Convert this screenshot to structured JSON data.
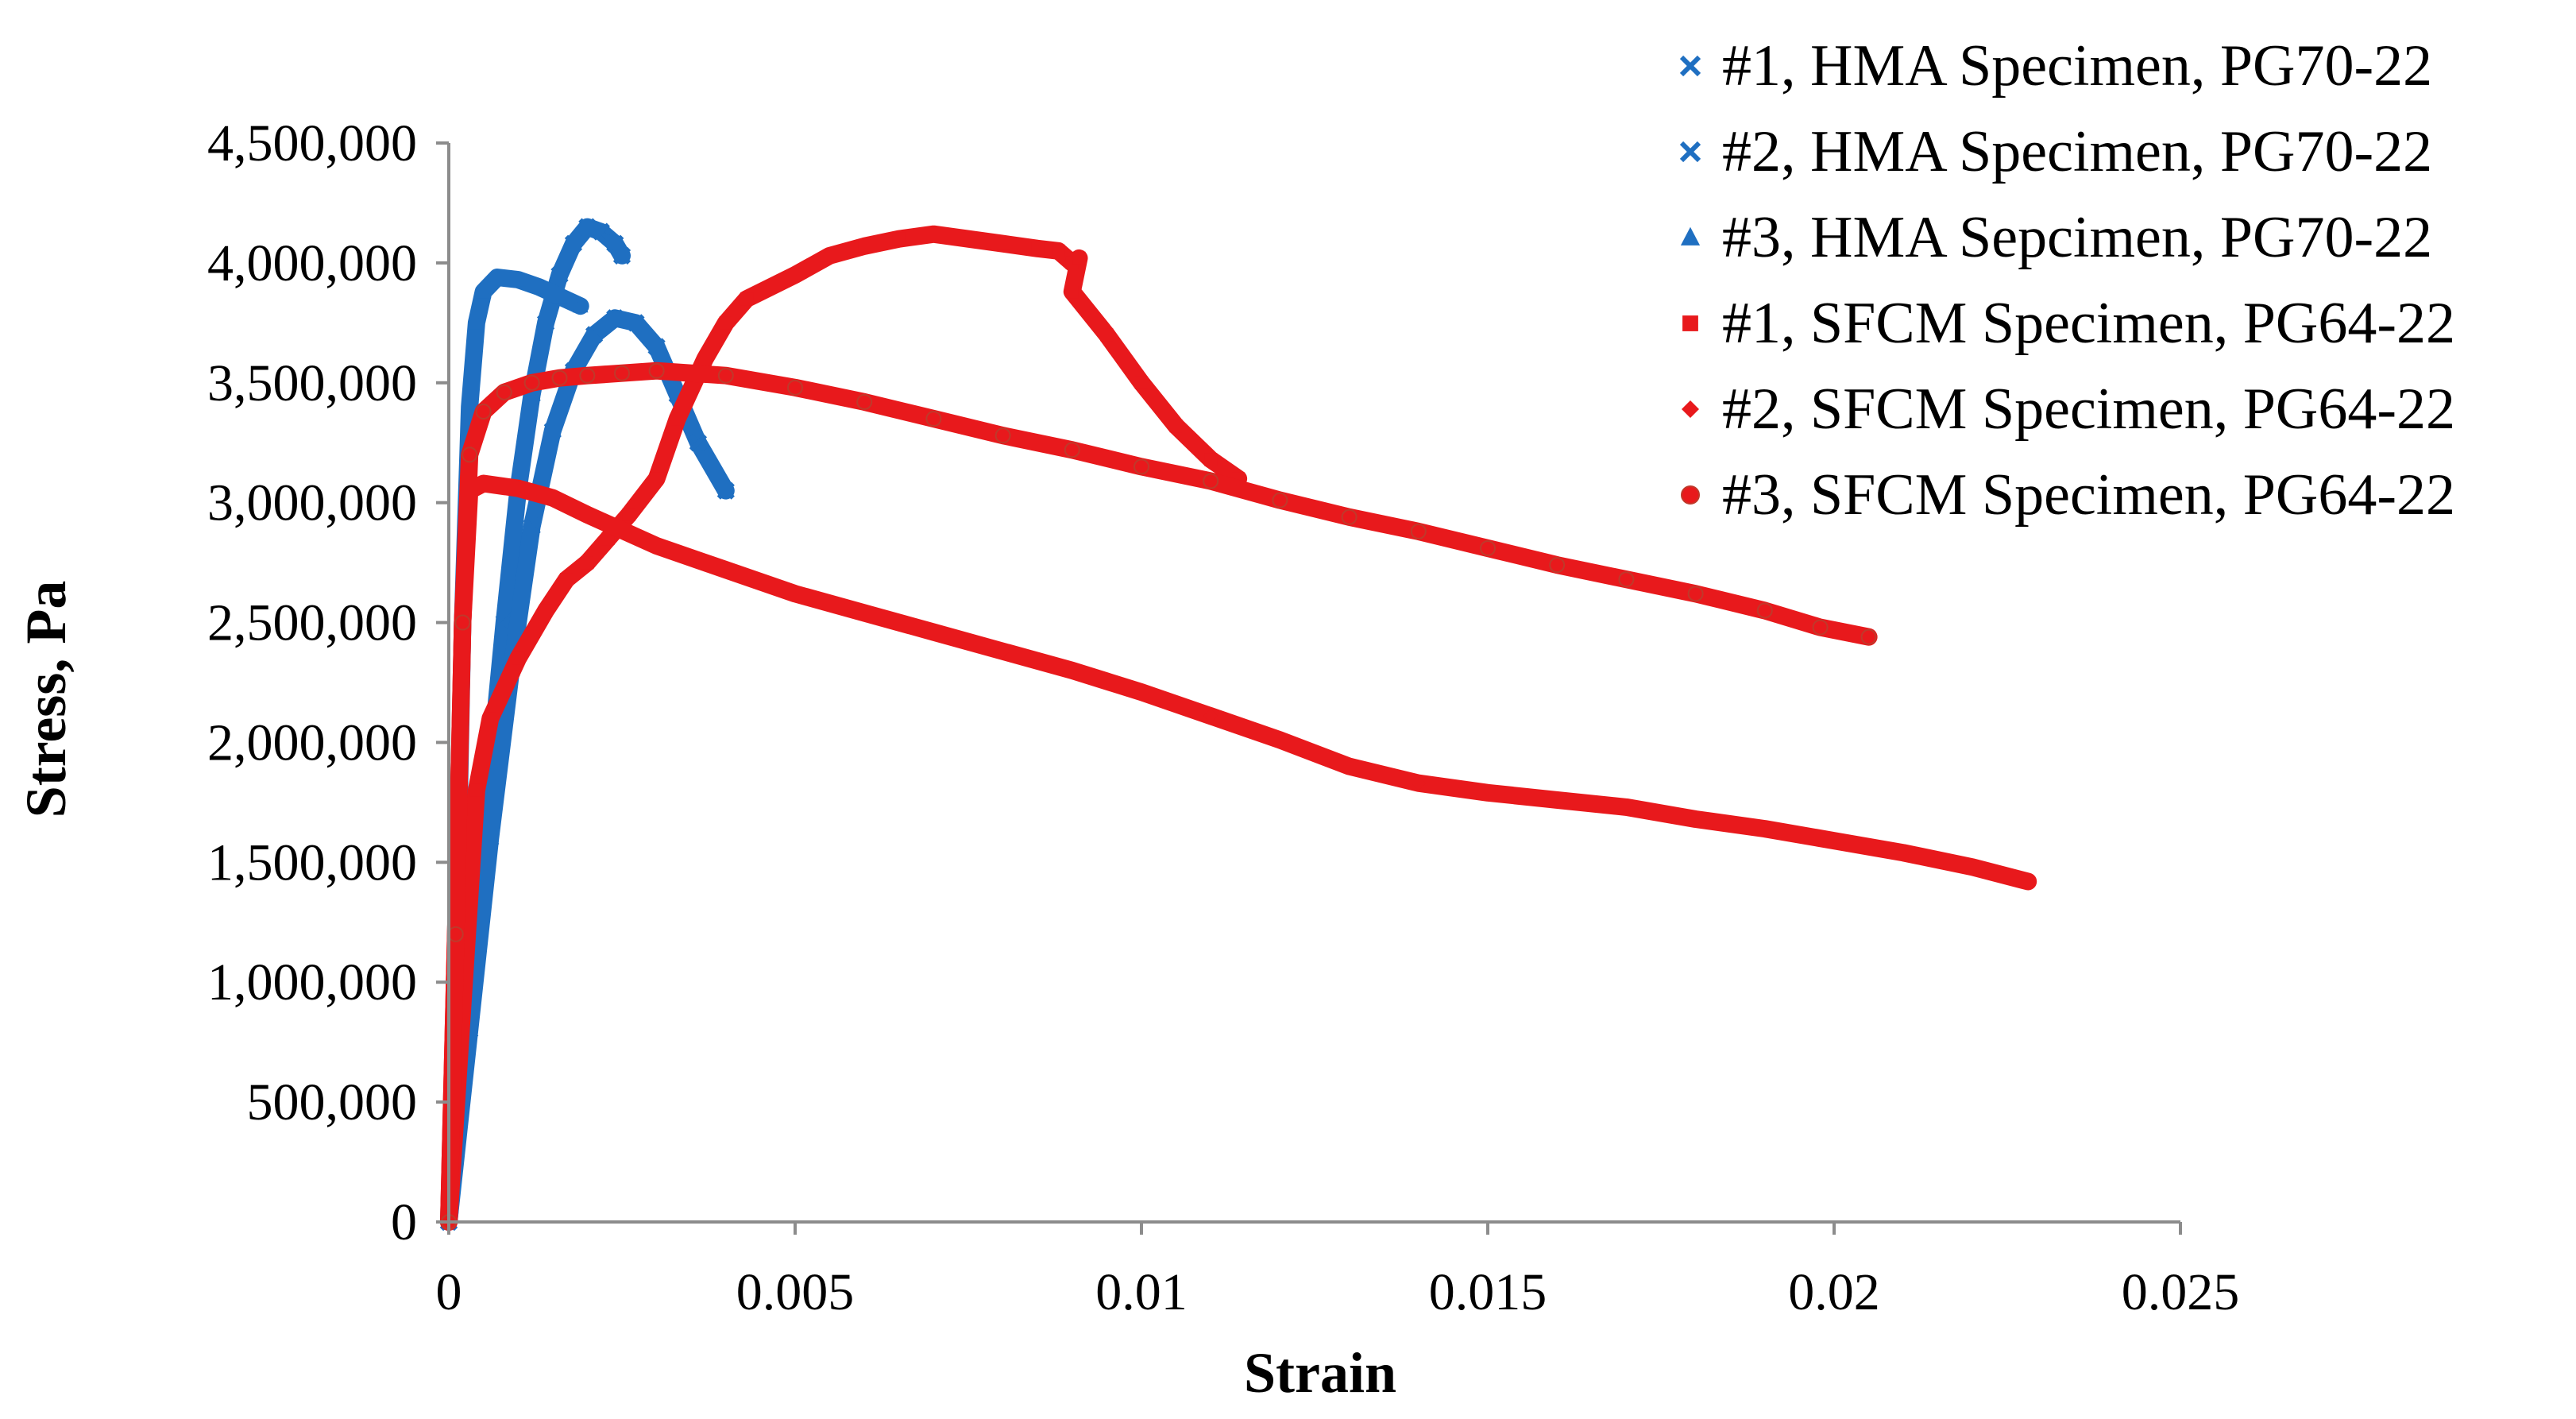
{
  "chart_data": {
    "type": "scatter",
    "title": "",
    "xlabel": "Strain",
    "ylabel": "Stress, Pa",
    "xlim": [
      0,
      0.025
    ],
    "ylim": [
      0,
      4500000
    ],
    "x_ticks": [
      0,
      0.005,
      0.01,
      0.015,
      0.02,
      0.025
    ],
    "x_tick_labels": [
      "0",
      "0.005",
      "0.01",
      "0.015",
      "0.02",
      "0.025"
    ],
    "y_ticks": [
      0,
      500000,
      1000000,
      1500000,
      2000000,
      2500000,
      3000000,
      3500000,
      4000000,
      4500000
    ],
    "y_tick_labels": [
      "0",
      "500,000",
      "1,000,000",
      "1,500,000",
      "2,000,000",
      "2,500,000",
      "3,000,000",
      "3,500,000",
      "4,000,000",
      "4,500,000"
    ],
    "grid": false,
    "legend_position": "top-right",
    "series": [
      {
        "name": "#1, HMA Specimen, PG70-22",
        "color": "#1f6fc1",
        "marker": "x",
        "points": [
          [
            0,
            0
          ],
          [
            0.0002,
            600000
          ],
          [
            0.0004,
            1300000
          ],
          [
            0.0006,
            1900000
          ],
          [
            0.0008,
            2500000
          ],
          [
            0.001,
            3050000
          ],
          [
            0.0012,
            3450000
          ],
          [
            0.0014,
            3750000
          ],
          [
            0.0016,
            3950000
          ],
          [
            0.0018,
            4080000
          ],
          [
            0.002,
            4150000
          ],
          [
            0.0022,
            4130000
          ],
          [
            0.0024,
            4080000
          ],
          [
            0.0025,
            4030000
          ]
        ]
      },
      {
        "name": "#2, HMA Specimen, PG70-22",
        "color": "#1f6fc1",
        "marker": "x",
        "points": [
          [
            0,
            0
          ],
          [
            0.0003,
            800000
          ],
          [
            0.0006,
            1600000
          ],
          [
            0.0009,
            2300000
          ],
          [
            0.0012,
            2900000
          ],
          [
            0.0015,
            3300000
          ],
          [
            0.0018,
            3550000
          ],
          [
            0.0021,
            3700000
          ],
          [
            0.0024,
            3770000
          ],
          [
            0.0027,
            3750000
          ],
          [
            0.003,
            3650000
          ],
          [
            0.0033,
            3450000
          ],
          [
            0.0036,
            3250000
          ],
          [
            0.004,
            3050000
          ]
        ]
      },
      {
        "name": "#3, HMA Sepcimen, PG70-22",
        "color": "#1f6fc1",
        "marker": "triangle",
        "points": [
          [
            0,
            0
          ],
          [
            0.0001,
            1000000
          ],
          [
            0.0002,
            2500000
          ],
          [
            0.0003,
            3400000
          ],
          [
            0.0004,
            3750000
          ],
          [
            0.0005,
            3880000
          ],
          [
            0.0007,
            3940000
          ],
          [
            0.001,
            3930000
          ],
          [
            0.0013,
            3900000
          ],
          [
            0.0016,
            3860000
          ],
          [
            0.0019,
            3820000
          ]
        ]
      },
      {
        "name": "#1, SFCM Specimen, PG64-22",
        "color": "#e8191c",
        "marker": "square",
        "points": [
          [
            0,
            0
          ],
          [
            0.0002,
            900000
          ],
          [
            0.0004,
            1800000
          ],
          [
            0.0006,
            2100000
          ],
          [
            0.001,
            2350000
          ],
          [
            0.0014,
            2550000
          ],
          [
            0.0017,
            2680000
          ],
          [
            0.002,
            2750000
          ],
          [
            0.0023,
            2850000
          ],
          [
            0.0026,
            2950000
          ],
          [
            0.003,
            3100000
          ],
          [
            0.0033,
            3350000
          ],
          [
            0.0037,
            3600000
          ],
          [
            0.004,
            3750000
          ],
          [
            0.0043,
            3850000
          ],
          [
            0.005,
            3950000
          ],
          [
            0.0055,
            4030000
          ],
          [
            0.006,
            4070000
          ],
          [
            0.0065,
            4100000
          ],
          [
            0.007,
            4120000
          ],
          [
            0.0075,
            4100000
          ],
          [
            0.008,
            4080000
          ],
          [
            0.0085,
            4060000
          ],
          [
            0.0088,
            4050000
          ],
          [
            0.009,
            4000000
          ],
          [
            0.0091,
            4020000
          ],
          [
            0.009,
            3880000
          ],
          [
            0.0095,
            3700000
          ],
          [
            0.01,
            3500000
          ],
          [
            0.0105,
            3320000
          ],
          [
            0.011,
            3180000
          ],
          [
            0.0114,
            3100000
          ]
        ]
      },
      {
        "name": "#2, SFCM Specimen, PG64-22",
        "color": "#e8191c",
        "marker": "diamond",
        "points": [
          [
            0,
            0
          ],
          [
            0.0001,
            1200000
          ],
          [
            0.0002,
            2500000
          ],
          [
            0.0003,
            3050000
          ],
          [
            0.0005,
            3080000
          ],
          [
            0.001,
            3060000
          ],
          [
            0.0015,
            3020000
          ],
          [
            0.002,
            2950000
          ],
          [
            0.003,
            2820000
          ],
          [
            0.004,
            2720000
          ],
          [
            0.005,
            2620000
          ],
          [
            0.006,
            2540000
          ],
          [
            0.007,
            2460000
          ],
          [
            0.008,
            2380000
          ],
          [
            0.009,
            2300000
          ],
          [
            0.01,
            2210000
          ],
          [
            0.011,
            2110000
          ],
          [
            0.012,
            2010000
          ],
          [
            0.013,
            1900000
          ],
          [
            0.014,
            1830000
          ],
          [
            0.015,
            1790000
          ],
          [
            0.016,
            1760000
          ],
          [
            0.017,
            1730000
          ],
          [
            0.018,
            1680000
          ],
          [
            0.019,
            1640000
          ],
          [
            0.02,
            1590000
          ],
          [
            0.021,
            1540000
          ],
          [
            0.022,
            1480000
          ],
          [
            0.0228,
            1420000
          ]
        ]
      },
      {
        "name": "#3, SFCM Specimen, PG64-22",
        "color": "#e8191c",
        "marker": "circle",
        "points": [
          [
            0,
            0
          ],
          [
            0.0001,
            1200000
          ],
          [
            0.0002,
            2500000
          ],
          [
            0.0003,
            3200000
          ],
          [
            0.0005,
            3380000
          ],
          [
            0.0008,
            3460000
          ],
          [
            0.0012,
            3500000
          ],
          [
            0.0016,
            3520000
          ],
          [
            0.002,
            3530000
          ],
          [
            0.0025,
            3540000
          ],
          [
            0.003,
            3550000
          ],
          [
            0.004,
            3530000
          ],
          [
            0.005,
            3480000
          ],
          [
            0.006,
            3420000
          ],
          [
            0.007,
            3350000
          ],
          [
            0.008,
            3280000
          ],
          [
            0.009,
            3220000
          ],
          [
            0.01,
            3150000
          ],
          [
            0.011,
            3090000
          ],
          [
            0.012,
            3010000
          ],
          [
            0.013,
            2940000
          ],
          [
            0.014,
            2880000
          ],
          [
            0.015,
            2810000
          ],
          [
            0.016,
            2740000
          ],
          [
            0.017,
            2680000
          ],
          [
            0.018,
            2620000
          ],
          [
            0.019,
            2550000
          ],
          [
            0.0198,
            2480000
          ],
          [
            0.0205,
            2440000
          ]
        ]
      }
    ]
  }
}
